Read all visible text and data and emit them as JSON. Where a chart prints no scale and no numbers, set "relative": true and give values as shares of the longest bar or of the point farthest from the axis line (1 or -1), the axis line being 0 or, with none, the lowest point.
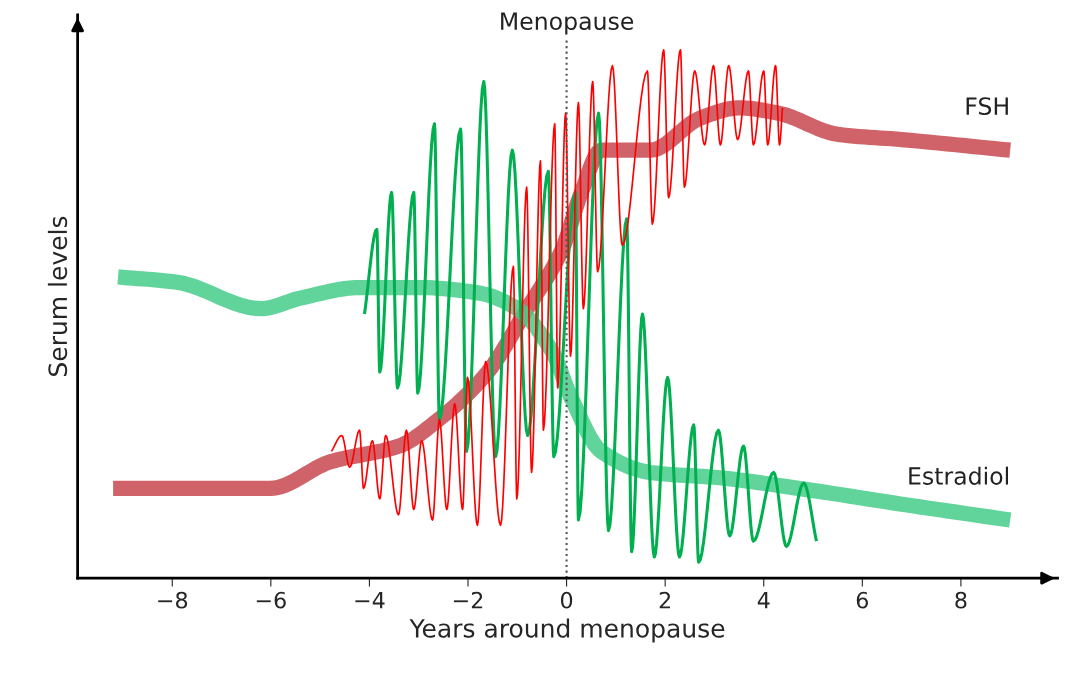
{
  "chart_data": {
    "type": "line",
    "relative": true,
    "xlabel": "Years around menopause",
    "ylabel": "Serum levels",
    "xlim": [
      -9.92,
      9.96
    ],
    "xticks": [
      {
        "value": -8,
        "label": "−8"
      },
      {
        "value": -6,
        "label": "−6"
      },
      {
        "value": -4,
        "label": "−4"
      },
      {
        "value": -2,
        "label": "−2"
      },
      0,
      2,
      4,
      6,
      8
    ],
    "grid": false,
    "legend": false,
    "line_style": "solid",
    "marker": "none",
    "ref_lines": [
      {
        "axis": "x",
        "value": 0,
        "label": "Menopause",
        "color": "#555555",
        "line_style": "dotted"
      }
    ],
    "series": [
      {
        "name": "FSH",
        "color": "#c8484f",
        "x": [
          -9.2,
          -6.0,
          -4.8,
          -3.4,
          -2.6,
          -1.6,
          -0.8,
          -0.1,
          0.3,
          0.7,
          1.7,
          2.7,
          3.5,
          4.3,
          5.5,
          6.8,
          9.0
        ],
        "values": [
          0.17,
          0.17,
          0.22,
          0.25,
          0.3,
          0.39,
          0.51,
          0.62,
          0.73,
          0.81,
          0.81,
          0.87,
          0.89,
          0.88,
          0.84,
          0.83,
          0.81
        ]
      },
      {
        "name": "Estradiol",
        "color": "#45cc8a",
        "x": [
          -9.1,
          -7.9,
          -6.2,
          -5.4,
          -4.2,
          -3.0,
          -1.8,
          -1.0,
          -0.3,
          0.1,
          0.7,
          1.7,
          3.1,
          4.7,
          6.8,
          9.0
        ],
        "values": [
          0.57,
          0.56,
          0.51,
          0.53,
          0.55,
          0.55,
          0.54,
          0.51,
          0.43,
          0.34,
          0.24,
          0.2,
          0.19,
          0.17,
          0.14,
          0.11
        ]
      },
      {
        "color": "#00b050",
        "x": [
          -4.1,
          -3.85,
          -3.79,
          -3.55,
          -3.43,
          -3.1,
          -3.02,
          -2.68,
          -2.58,
          -2.15,
          -2.03,
          -1.68,
          -1.44,
          -1.1,
          -0.79,
          -0.37,
          -0.26,
          0.18,
          0.24,
          0.65,
          0.85,
          1.22,
          1.32,
          1.54,
          1.78,
          2.05,
          2.29,
          2.58,
          2.68,
          3.08,
          3.31,
          3.59,
          3.79,
          4.2,
          4.46,
          4.81,
          5.07
        ],
        "values": [
          0.5,
          0.66,
          0.39,
          0.73,
          0.36,
          0.73,
          0.35,
          0.86,
          0.3,
          0.85,
          0.24,
          0.94,
          0.23,
          0.81,
          0.27,
          0.77,
          0.23,
          0.73,
          0.11,
          0.88,
          0.09,
          0.68,
          0.05,
          0.5,
          0.04,
          0.38,
          0.04,
          0.29,
          0.03,
          0.28,
          0.08,
          0.25,
          0.07,
          0.2,
          0.06,
          0.18,
          0.07
        ]
      },
      {
        "color": "#ff0000",
        "x": [
          -4.77,
          -4.56,
          -4.4,
          -4.2,
          -4.12,
          -3.94,
          -3.79,
          -3.67,
          -3.41,
          -3.25,
          -3.1,
          -2.94,
          -2.72,
          -2.58,
          -2.43,
          -2.27,
          -2.11,
          -2.01,
          -1.81,
          -1.64,
          -1.34,
          -1.08,
          -1.01,
          -0.81,
          -0.71,
          -0.53,
          -0.47,
          -0.24,
          -0.18,
          -0.02,
          0.08,
          0.24,
          0.34,
          0.53,
          0.63,
          0.93,
          1.13,
          1.64,
          1.74,
          1.97,
          2.07,
          2.31,
          2.39,
          2.6,
          2.8,
          2.98,
          3.12,
          3.29,
          3.47,
          3.69,
          3.79,
          4.0,
          4.08,
          4.24,
          4.32,
          4.38
        ],
        "values": [
          0.24,
          0.27,
          0.21,
          0.28,
          0.17,
          0.26,
          0.15,
          0.27,
          0.12,
          0.28,
          0.13,
          0.26,
          0.11,
          0.3,
          0.13,
          0.33,
          0.13,
          0.38,
          0.1,
          0.41,
          0.1,
          0.59,
          0.15,
          0.74,
          0.2,
          0.79,
          0.28,
          0.86,
          0.36,
          0.88,
          0.42,
          0.9,
          0.51,
          0.94,
          0.58,
          0.97,
          0.63,
          0.96,
          0.67,
          1.0,
          0.72,
          1.0,
          0.74,
          0.96,
          0.82,
          0.97,
          0.82,
          0.97,
          0.83,
          0.96,
          0.82,
          0.96,
          0.82,
          0.97,
          0.82,
          0.89
        ]
      }
    ]
  }
}
